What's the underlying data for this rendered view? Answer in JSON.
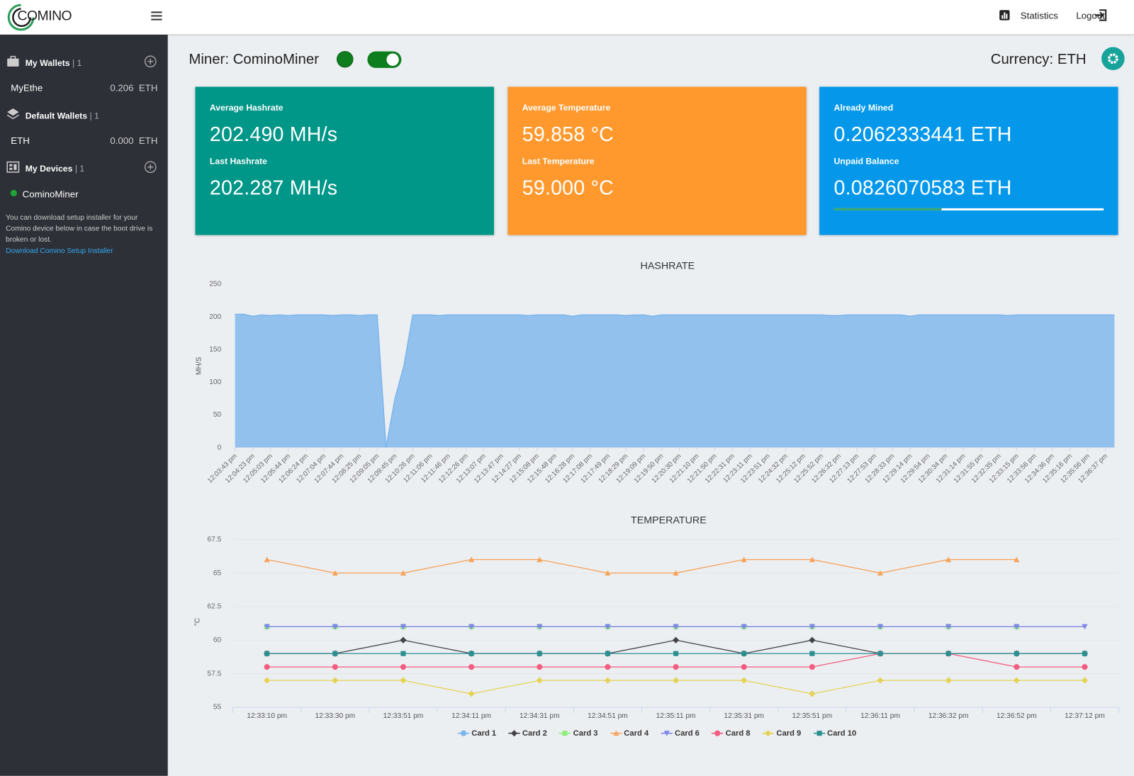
{
  "header": {
    "logo": "COMINO",
    "statistics": "Statistics",
    "logout": "Logout"
  },
  "sidebar": {
    "sections": [
      {
        "title": "My Wallets",
        "count": "| 1",
        "items": [
          {
            "name": "MyEthe",
            "amount": "0.206",
            "unit": "ETH"
          }
        ]
      },
      {
        "title": "Default Wallets",
        "count": "| 1",
        "items": [
          {
            "name": "ETH",
            "amount": "0.000",
            "unit": "ETH"
          }
        ]
      },
      {
        "title": "My Devices",
        "count": "| 1",
        "items": [
          {
            "name": "CominoMiner"
          }
        ]
      }
    ],
    "note": "You can download setup installer for your Comino device below in case the boot drive is broken or lost.",
    "link": "Download Comino Setup Installer"
  },
  "miner": {
    "label": "Miner: CominoMiner",
    "currency": "Currency: ETH"
  },
  "cards": [
    {
      "label1": "Average Hashrate",
      "value1": "202.490 MH/s",
      "label2": "Last Hashrate",
      "value2": "202.287 MH/s",
      "color": "#009688"
    },
    {
      "label1": "Average Temperature",
      "value1": "59.858 °C",
      "label2": "Last Temperature",
      "value2": "59.000 °C",
      "color": "#ff992e"
    },
    {
      "label1": "Already Mined",
      "value1": "0.2062333441",
      "unit1": "ETH",
      "label2": "Unpaid Balance",
      "value2": "0.0826070583",
      "unit2": "ETH",
      "color": "#0598ea"
    }
  ],
  "chart_data": [
    {
      "type": "area",
      "title": "HASHRATE",
      "y_label": "MH/S",
      "color": "#7cb5ec",
      "ylim": [
        0,
        250
      ],
      "yticks": [
        0,
        50,
        100,
        150,
        200,
        250
      ],
      "grid": false,
      "categories": [
        "12:03:43 pm",
        null,
        "12:04:23 pm",
        null,
        "12:05:03 pm",
        null,
        "12:05:44 pm",
        null,
        "12:06:24 pm",
        null,
        "12:07:04 pm",
        null,
        "12:07:44 pm",
        null,
        "12:08:25 pm",
        null,
        "12:09:05 pm",
        null,
        "12:09:45 pm",
        null,
        "12:10:26 pm",
        null,
        "12:11:06 pm",
        null,
        "12:11:46 pm",
        null,
        "12:12:26 pm",
        null,
        "12:13:07 pm",
        null,
        "12:13:47 pm",
        null,
        "12:14:27 pm",
        null,
        "12:15:08 pm",
        null,
        "12:15:48 pm",
        null,
        "12:16:28 pm",
        null,
        "12:17:08 pm",
        null,
        "12:17:49 pm",
        null,
        "12:18:29 pm",
        null,
        "12:19:09 pm",
        null,
        "12:19:50 pm",
        null,
        "12:20:30 pm",
        null,
        "12:21:10 pm",
        null,
        "12:21:50 pm",
        null,
        "12:22:31 pm",
        null,
        "12:23:11 pm",
        null,
        "12:23:51 pm",
        null,
        "12:24:32 pm",
        null,
        "12:25:12 pm",
        null,
        "12:25:52 pm",
        null,
        "12:26:32 pm",
        null,
        "12:27:13 pm",
        null,
        "12:27:53 pm",
        null,
        "12:28:33 pm",
        null,
        "12:29:14 pm",
        null,
        "12:29:54 pm",
        null,
        "12:30:34 pm",
        null,
        "12:31:14 pm",
        null,
        "12:31:55 pm",
        null,
        "12:32:35 pm",
        null,
        "12:33:15 pm",
        null,
        "12:33:56 pm",
        null,
        "12:34:36 pm",
        null,
        "12:35:16 pm",
        null,
        "12:35:56 pm",
        null,
        "12:36:37 pm",
        null
      ],
      "values": [
        204,
        204,
        201,
        203,
        202,
        203,
        202,
        203,
        203,
        203,
        203,
        202,
        203,
        203,
        202,
        203,
        203,
        0,
        75,
        125,
        203,
        203,
        203,
        202,
        203,
        203,
        203,
        203,
        203,
        203,
        203,
        203,
        203,
        202,
        203,
        203,
        203,
        203,
        201,
        203,
        203,
        203,
        203,
        203,
        202,
        203,
        203,
        201,
        203,
        203,
        203,
        203,
        203,
        203,
        203,
        203,
        203,
        203,
        203,
        203,
        203,
        203,
        203,
        203,
        203,
        203,
        203,
        202,
        202,
        203,
        203,
        203,
        203,
        203,
        203,
        203,
        201,
        203,
        203,
        203,
        203,
        203,
        203,
        203,
        203,
        203,
        203,
        202,
        203,
        203,
        203,
        203,
        203,
        203,
        203,
        203,
        203,
        203,
        203,
        203
      ]
    },
    {
      "type": "line",
      "title": "TEMPERATURE",
      "y_label": "°C",
      "ylim": [
        55,
        67.5
      ],
      "yticks": [
        55,
        57.5,
        60,
        62.5,
        65,
        67.5
      ],
      "grid": true,
      "legend": "bottom",
      "categories": [
        "12:33:10 pm",
        "12:33:30 pm",
        "12:33:51 pm",
        "12:34:11 pm",
        "12:34:31 pm",
        "12:34:51 pm",
        "12:35:11 pm",
        "12:35:31 pm",
        "12:35:51 pm",
        "12:36:11 pm",
        "12:36:32 pm",
        "12:36:52 pm",
        "12:37:12 pm"
      ],
      "series": [
        {
          "name": "Card 1",
          "color": "#7cb5ec",
          "marker": "circle",
          "values": [
            61,
            61,
            61,
            61,
            61,
            61,
            61,
            61,
            61,
            61,
            61,
            61,
            null
          ]
        },
        {
          "name": "Card 2",
          "color": "#434348",
          "marker": "diamond",
          "values": [
            59,
            59,
            60,
            59,
            59,
            59,
            60,
            59,
            60,
            59,
            59,
            59,
            59
          ]
        },
        {
          "name": "Card 3",
          "color": "#90ed7d",
          "marker": "square",
          "values": [
            61,
            61,
            61,
            61,
            61,
            61,
            61,
            61,
            61,
            61,
            61,
            61,
            null
          ]
        },
        {
          "name": "Card 4",
          "color": "#f7a35c",
          "marker": "triangle",
          "values": [
            66,
            65,
            65,
            66,
            66,
            65,
            65,
            66,
            66,
            65,
            66,
            66,
            null
          ]
        },
        {
          "name": "Card 6",
          "color": "#8085e9",
          "marker": "triangle-down",
          "values": [
            61,
            61,
            61,
            61,
            61,
            61,
            61,
            61,
            61,
            61,
            61,
            61,
            61
          ]
        },
        {
          "name": "Card 8",
          "color": "#f15c80",
          "marker": "circle",
          "values": [
            58,
            58,
            58,
            58,
            58,
            58,
            58,
            58,
            58,
            59,
            59,
            58,
            58
          ]
        },
        {
          "name": "Card 9",
          "color": "#e4d354",
          "marker": "diamond",
          "values": [
            57,
            57,
            57,
            56,
            57,
            57,
            57,
            57,
            56,
            57,
            57,
            57,
            57
          ]
        },
        {
          "name": "Card 10",
          "color": "#2b908f",
          "marker": "square",
          "values": [
            59,
            59,
            59,
            59,
            59,
            59,
            59,
            59,
            59,
            59,
            59,
            59,
            59
          ]
        }
      ]
    }
  ]
}
